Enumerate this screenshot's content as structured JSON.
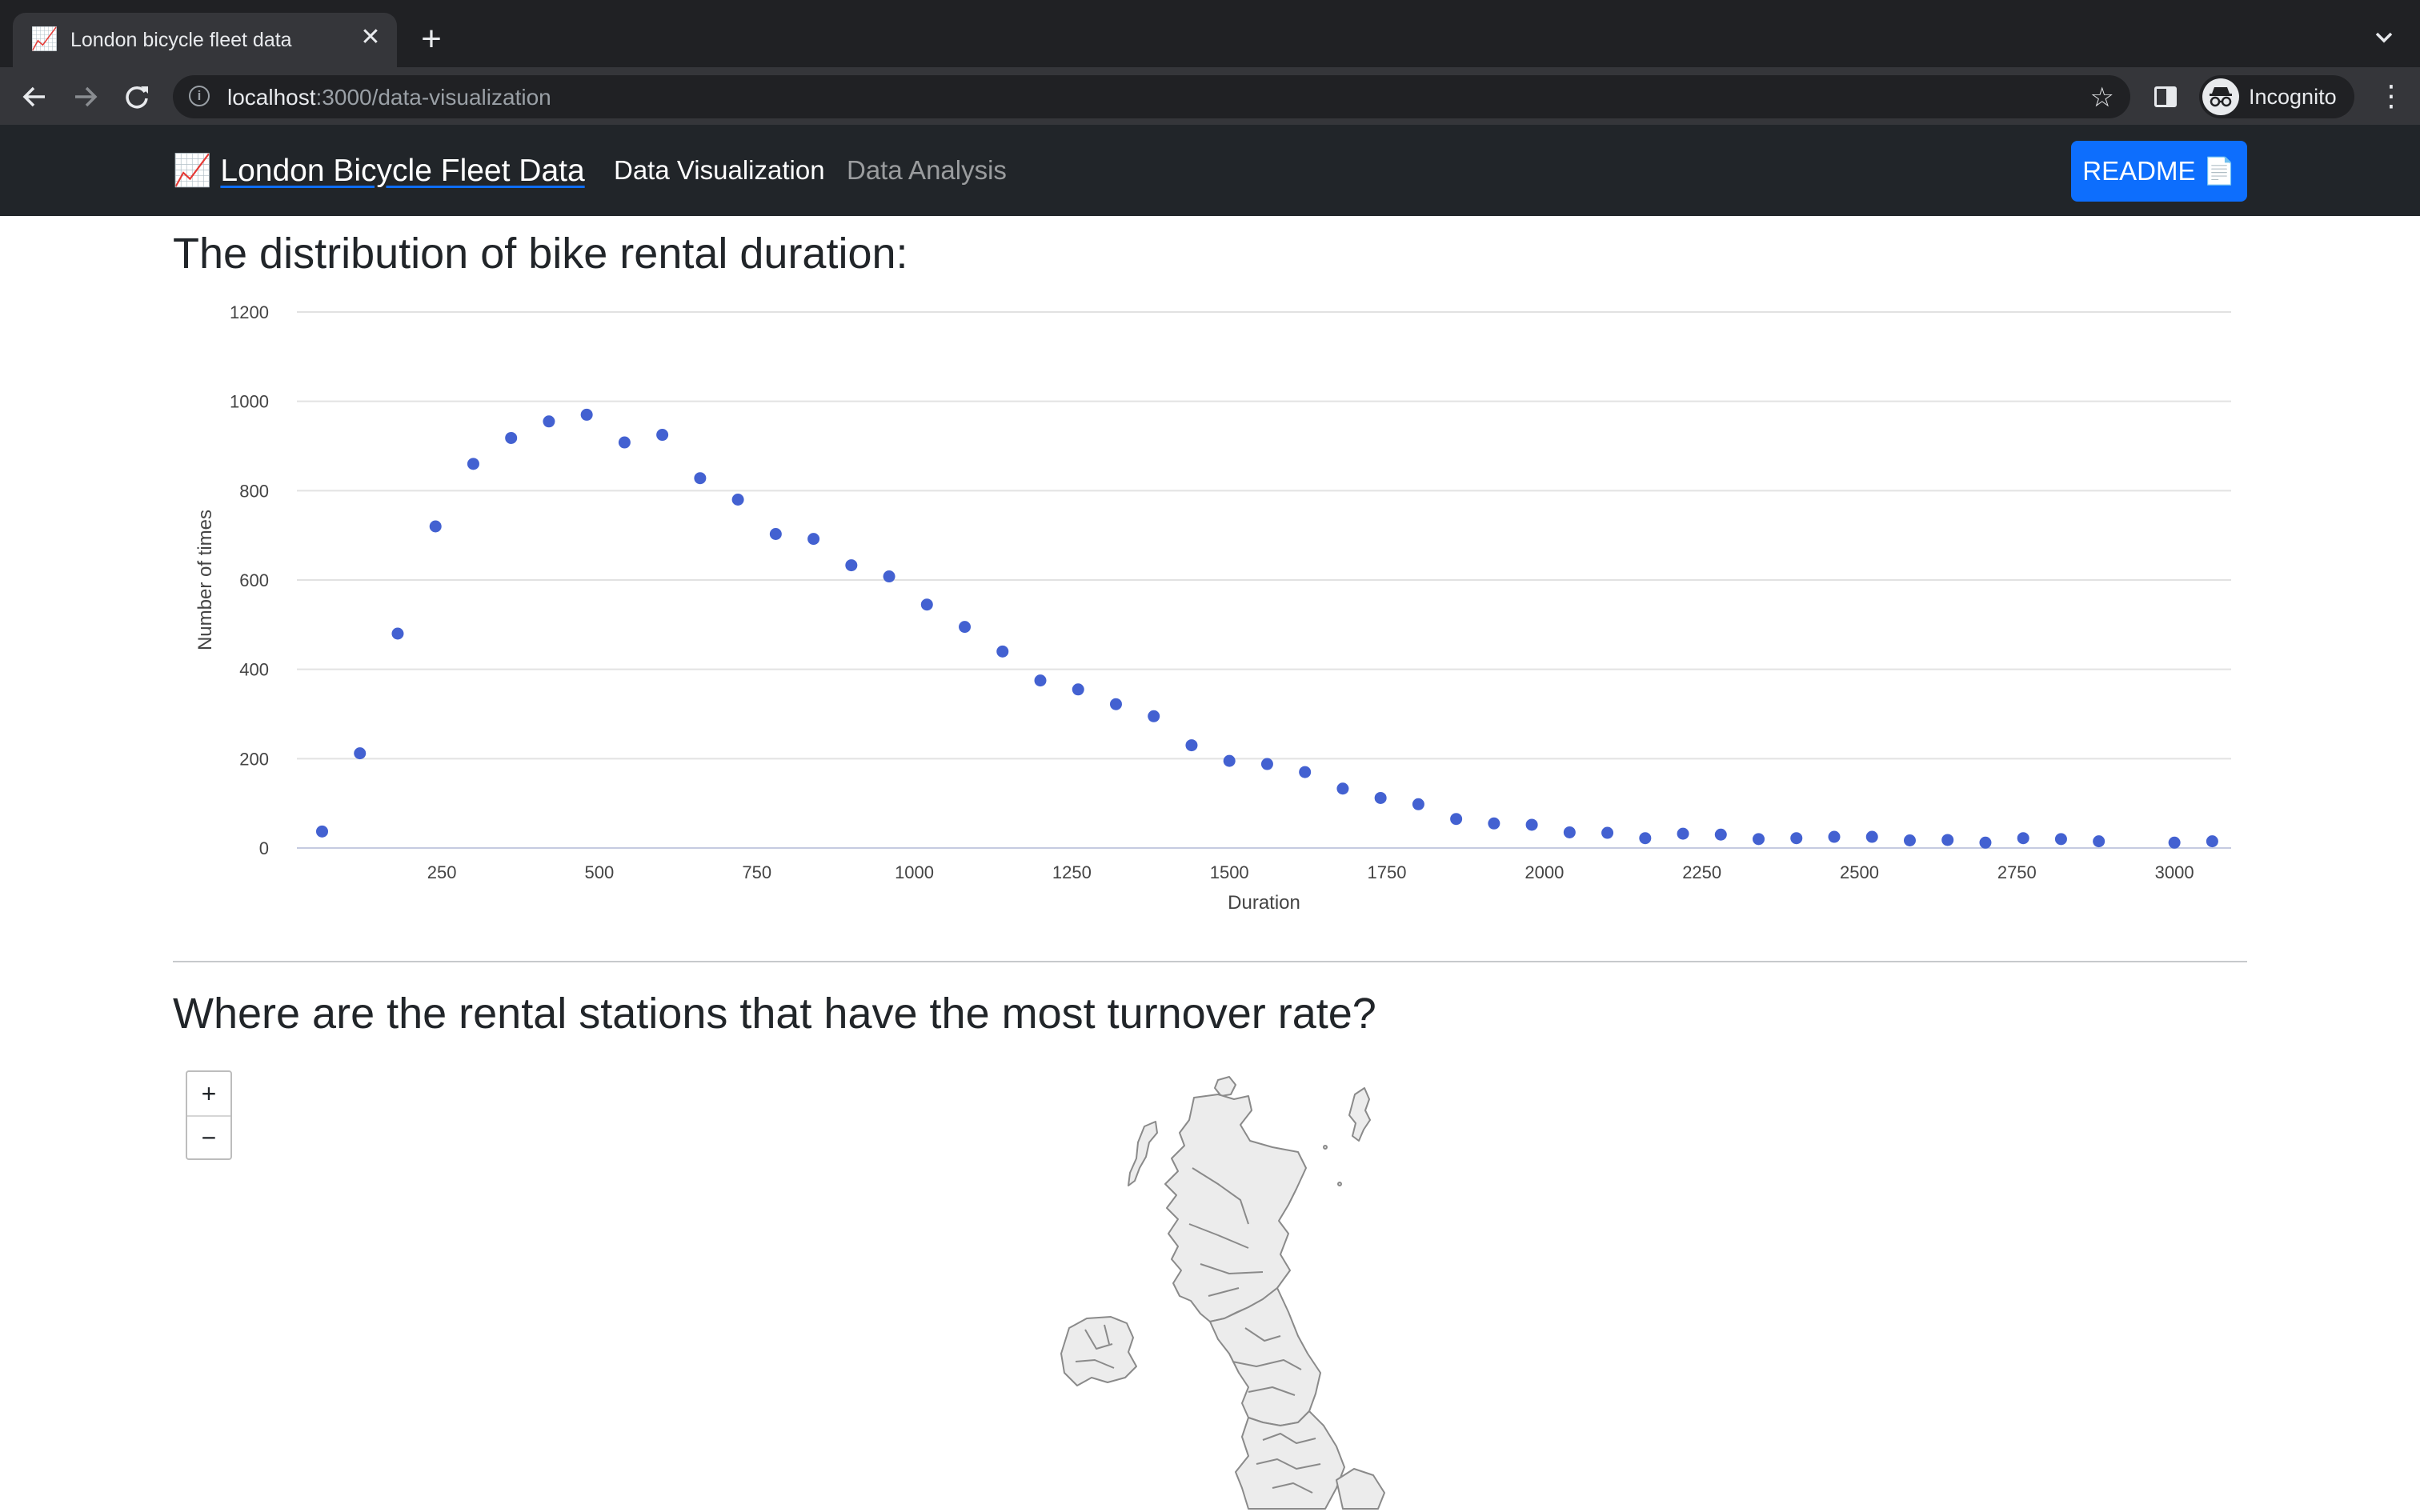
{
  "browser": {
    "tab": {
      "favicon": "📈",
      "title": "London bicycle fleet data",
      "close": "✕"
    },
    "new_tab": "+",
    "url_host": "localhost",
    "url_rest": ":3000/data-visualization",
    "profile_label": "Incognito",
    "icons": [
      "back-arrow-icon",
      "forward-arrow-icon",
      "reload-icon",
      "info-icon",
      "star-icon",
      "side-panel-icon",
      "incognito-icon",
      "kebab-menu-icon",
      "tab-list-chevron-icon"
    ]
  },
  "navbar": {
    "brand_icon": "📈",
    "brand": "London Bicycle Fleet Data",
    "links": [
      {
        "label": "Data Visualization",
        "active": true
      },
      {
        "label": "Data Analysis",
        "active": false
      }
    ],
    "readme_label": "README",
    "readme_icon": "📄"
  },
  "sections": {
    "duration_title": "The distribution of bike rental duration:",
    "stations_title": "Where are the rental stations that have the most turnover rate?"
  },
  "chart_data": {
    "type": "scatter",
    "title": "The distribution of bike rental duration:",
    "xlabel": "Duration",
    "ylabel": "Number of times",
    "xlim": [
      20,
      3090
    ],
    "ylim": [
      0,
      1200
    ],
    "xticks": [
      250,
      500,
      750,
      1000,
      1250,
      1500,
      1750,
      2000,
      2250,
      2500,
      2750,
      3000
    ],
    "yticks": [
      0,
      200,
      400,
      600,
      800,
      1000,
      1200
    ],
    "grid": true,
    "color": "#4361d1",
    "x": [
      60,
      120,
      180,
      240,
      300,
      360,
      420,
      480,
      540,
      600,
      660,
      720,
      780,
      840,
      900,
      960,
      1020,
      1080,
      1140,
      1200,
      1260,
      1320,
      1380,
      1440,
      1500,
      1560,
      1620,
      1680,
      1740,
      1800,
      1860,
      1920,
      1980,
      2040,
      2100,
      2160,
      2220,
      2280,
      2340,
      2400,
      2460,
      2520,
      2580,
      2640,
      2700,
      2760,
      2820,
      2880,
      3000,
      3060
    ],
    "y": [
      37,
      212,
      480,
      720,
      860,
      918,
      955,
      970,
      908,
      925,
      828,
      780,
      703,
      692,
      633,
      608,
      545,
      495,
      440,
      375,
      355,
      322,
      295,
      230,
      195,
      188,
      170,
      133,
      112,
      98,
      65,
      55,
      52,
      35,
      34,
      22,
      32,
      30,
      20,
      22,
      25,
      25,
      17,
      18,
      12,
      22,
      20,
      15,
      12,
      15
    ]
  },
  "map": {
    "zoom_in": "+",
    "zoom_out": "−",
    "fill": "#ececec",
    "stroke": "#8a8a8a"
  }
}
